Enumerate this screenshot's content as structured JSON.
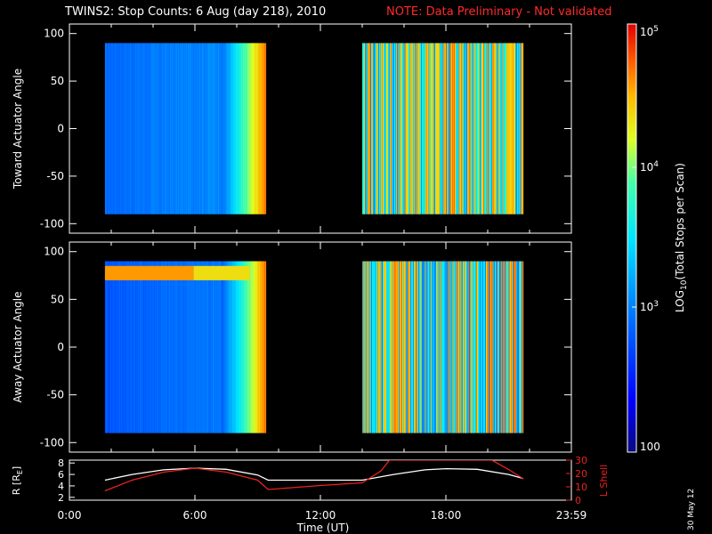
{
  "title": {
    "main": "TWINS2: Stop Counts:  6 Aug (day 218), 2010",
    "note": "NOTE: Data Preliminary - Not validated"
  },
  "stamp": "30 May 12",
  "colors": {
    "background": "#000000",
    "note": "#ff2a2a",
    "r_line": "#ffffff",
    "l_line": "#e8231d"
  },
  "chart_data": [
    {
      "type": "heatmap",
      "panel": "toward",
      "ylabel": "Toward Actuator Angle",
      "ylim": [
        -110,
        110
      ],
      "yticks": [
        -100,
        -50,
        0,
        50,
        100
      ],
      "xlim": [
        0,
        24
      ],
      "data_blocks": [
        {
          "x": [
            1.7,
            9.4
          ],
          "y": [
            -90,
            90
          ],
          "level_start": 0.3,
          "level_end": 0.86
        },
        {
          "x": [
            14.0,
            21.7
          ],
          "y": [
            -90,
            90
          ],
          "level_start": 0.35,
          "level_end": 0.85
        }
      ]
    },
    {
      "type": "heatmap",
      "panel": "away",
      "ylabel": "Away Actuator Angle",
      "ylim": [
        -110,
        110
      ],
      "yticks": [
        -100,
        -50,
        0,
        50,
        100
      ],
      "xlim": [
        0,
        24
      ],
      "data_blocks": [
        {
          "x": [
            1.7,
            9.4
          ],
          "y": [
            -90,
            90
          ],
          "level_start": 0.27,
          "level_end": 0.85,
          "hot_band": [
            70,
            85
          ]
        },
        {
          "x": [
            14.0,
            21.7
          ],
          "y": [
            -90,
            90
          ],
          "level_start": 0.32,
          "level_end": 0.86
        }
      ]
    },
    {
      "type": "line",
      "panel": "orbit",
      "xlabel": "Time (UT)",
      "xlim": [
        0,
        24
      ],
      "xticks": [
        "0:00",
        "6:00",
        "12:00",
        "18:00",
        "23:59"
      ],
      "ylabel_left": "R [R_E]",
      "ylabel_right": "L Shell",
      "yticks_left": [
        2,
        4,
        6,
        8
      ],
      "yticks_right": [
        0,
        10,
        20,
        30
      ],
      "ylim_left": [
        1.5,
        8.5
      ],
      "ylim_right": [
        0,
        30
      ],
      "series": [
        {
          "name": "R [R_E]",
          "axis": "left",
          "x": [
            1.7,
            3.0,
            4.5,
            6.0,
            7.5,
            9.0,
            9.5,
            14.0,
            15.5,
            17.0,
            18.0,
            19.5,
            21.0,
            21.7
          ],
          "y": [
            5.0,
            6.0,
            6.8,
            7.1,
            6.9,
            5.9,
            5.0,
            5.0,
            6.0,
            6.8,
            7.0,
            6.9,
            6.0,
            5.3
          ]
        },
        {
          "name": "L Shell",
          "axis": "right",
          "x": [
            1.7,
            3.0,
            4.5,
            6.0,
            7.5,
            9.0,
            9.5,
            12.0,
            14.0,
            14.9,
            15.3,
            20.2,
            21.0,
            21.7
          ],
          "y": [
            7,
            15,
            21,
            24,
            21,
            15,
            8,
            11,
            13,
            22,
            30,
            30,
            23,
            16
          ]
        }
      ]
    }
  ],
  "colorbar": {
    "label_top": "10^5",
    "label_mid1": "10^4",
    "label_mid2": "10^3",
    "label_bottom": "100",
    "title": "LOG10(Total Stops per Scan)",
    "scale": "log"
  },
  "labels": {
    "toward_ylabel": "Toward Actuator Angle",
    "away_ylabel": "Away Actuator Angle",
    "r_ylabel_main": "R [R",
    "r_ylabel_sub": "E",
    "r_ylabel_end": "]",
    "l_ylabel": "L Shell",
    "xlabel": "Time (UT)",
    "cb_label_pre": "LOG",
    "cb_label_sub": "10",
    "cb_label_post": "(Total Stops per Scan)",
    "cb_top_base": "10",
    "cb_top_exp": "5",
    "cb_mid1_base": "10",
    "cb_mid1_exp": "4",
    "cb_mid2_base": "10",
    "cb_mid2_exp": "3",
    "cb_bottom": "100"
  }
}
